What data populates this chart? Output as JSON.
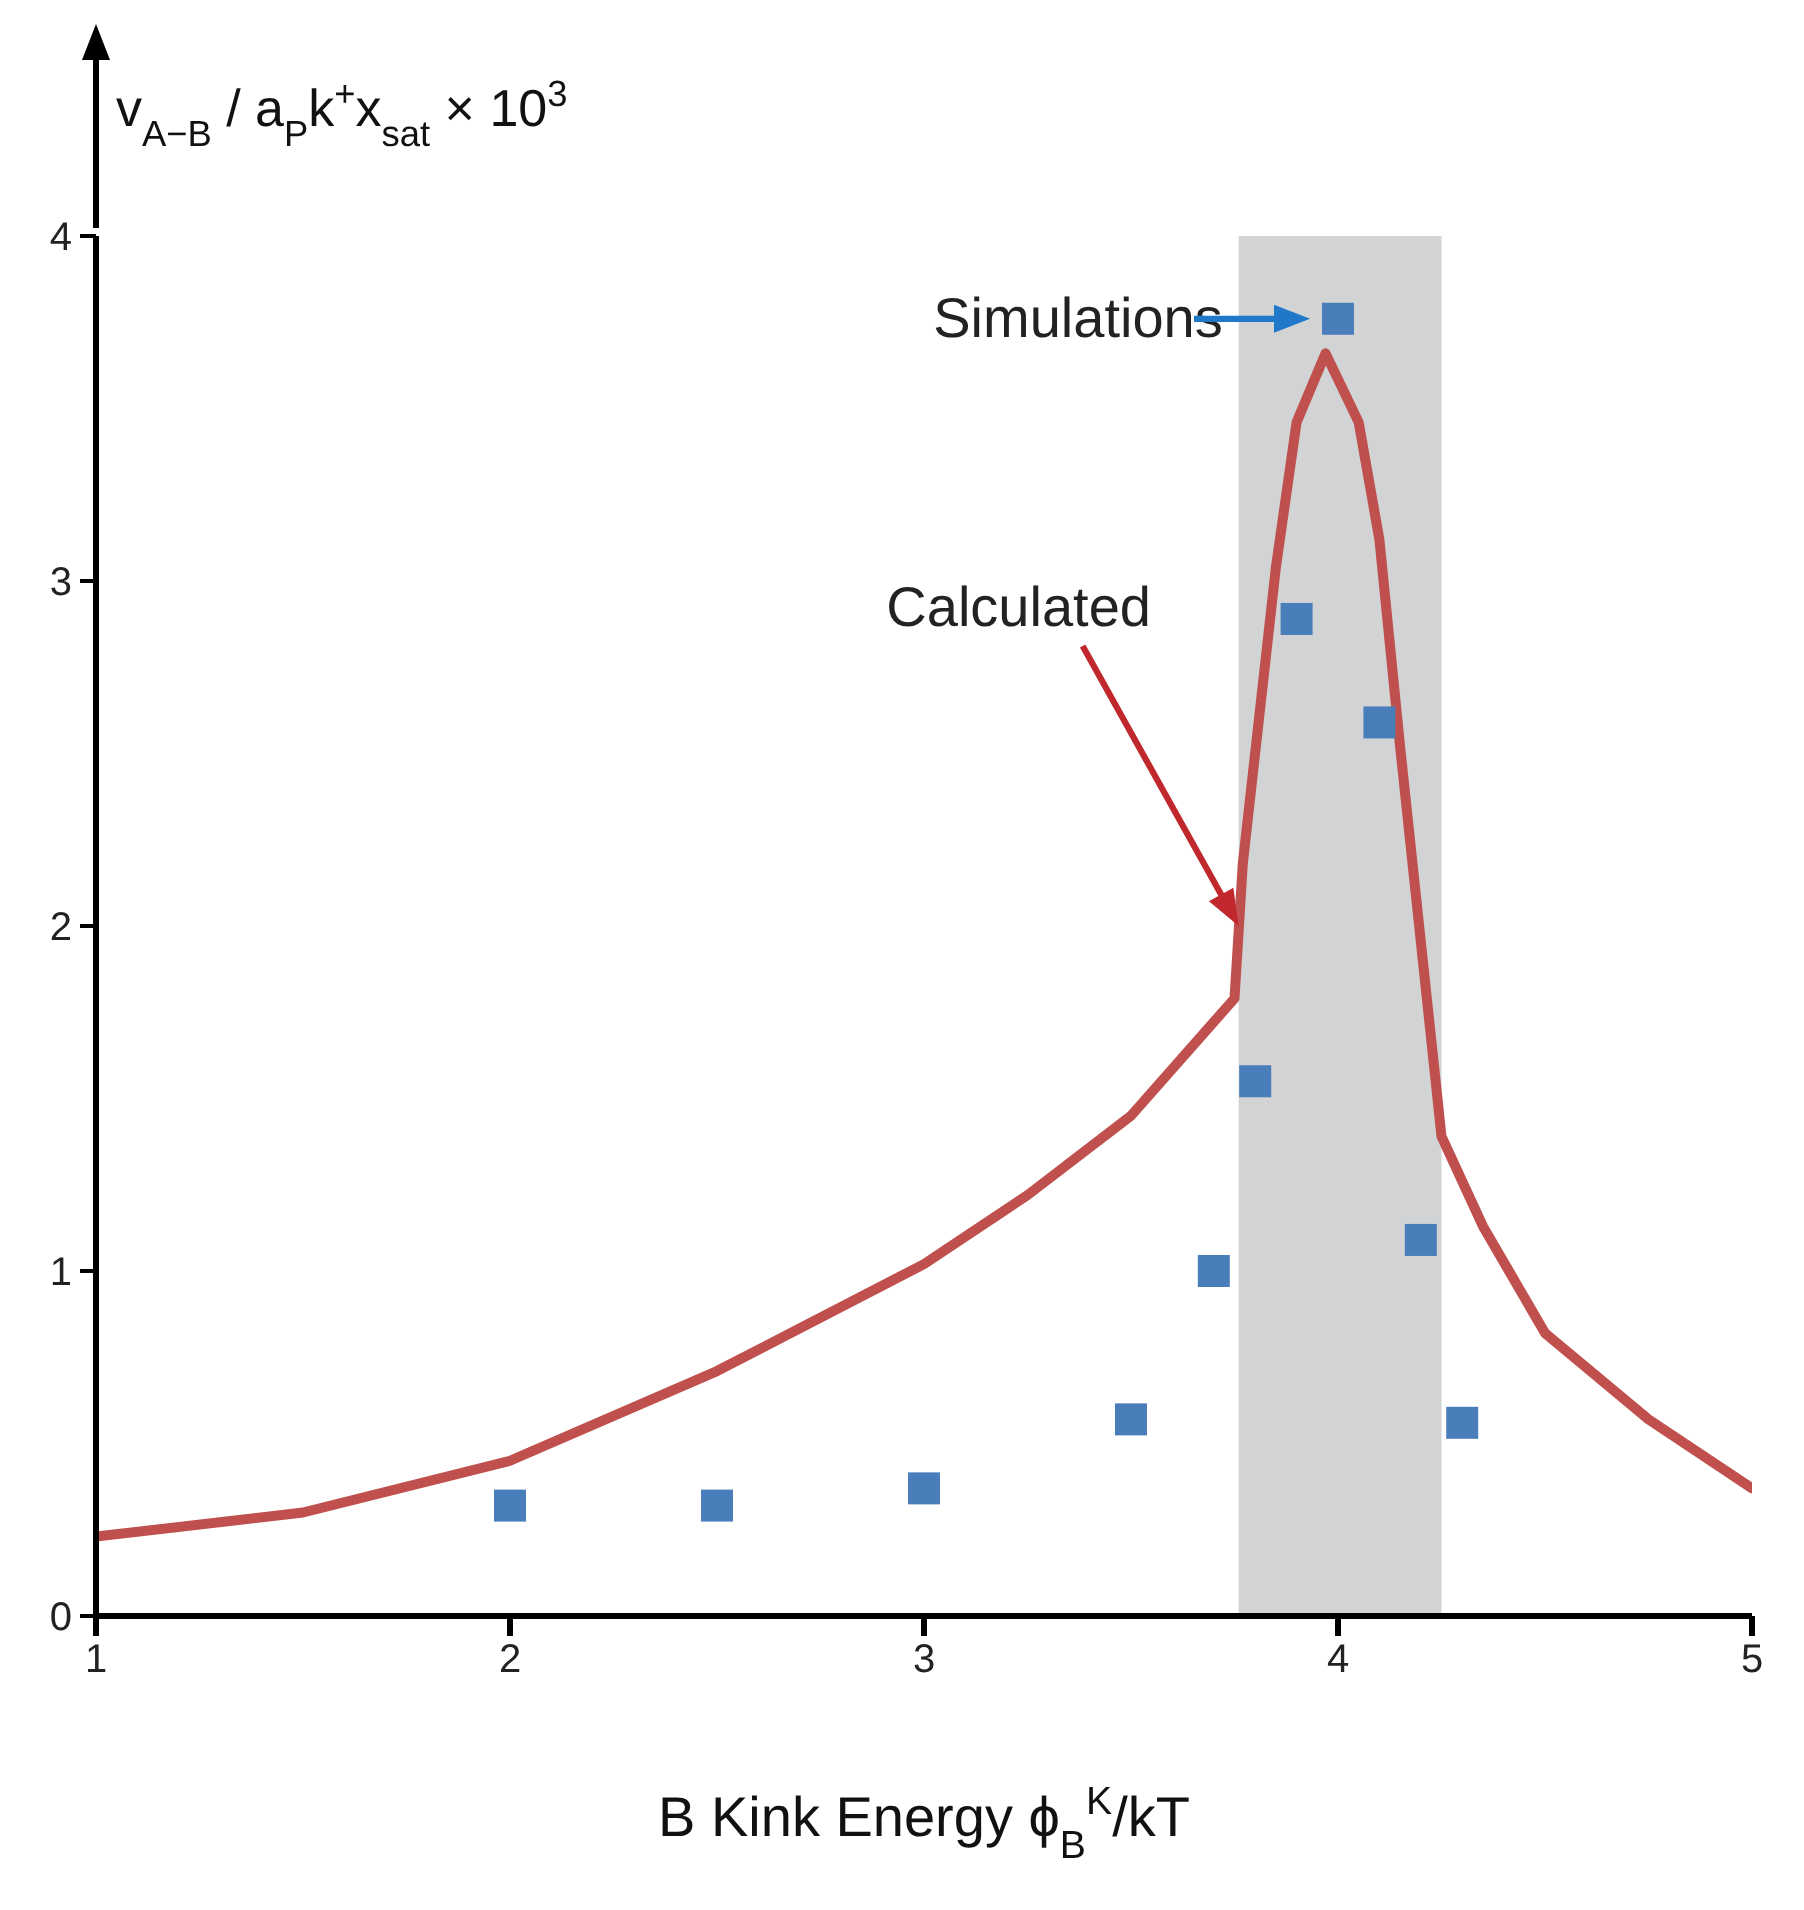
{
  "chart_data": {
    "type": "scatter",
    "xlabel": "B Kink Energy  ϕ$_{B}$$^{K}$/kT",
    "ylabel": "v$_{A−B}$ / a$_{P}$k$^{+}$x$_{sat}$ × 10$^{3}$",
    "xlim": [
      1,
      5
    ],
    "xticks": [
      1,
      2,
      3,
      4,
      5
    ],
    "ylim": [
      0,
      4
    ],
    "yticks": [
      0,
      1,
      2,
      3,
      4
    ],
    "series": [
      {
        "type": "line",
        "color": "#c0504d",
        "marker": "none",
        "line_style": "solid",
        "x": [
          1,
          1.5,
          2,
          2.5,
          3,
          3.25,
          3.5,
          3.75,
          3.77,
          3.85,
          3.9,
          3.97,
          4.05,
          4.1,
          4.15,
          4.25,
          4.35,
          4.5,
          4.75,
          5
        ],
        "values": [
          0.23,
          0.3,
          0.45,
          0.71,
          1.02,
          1.22,
          1.45,
          1.79,
          2.18,
          3.04,
          3.46,
          3.66,
          3.46,
          3.12,
          2.52,
          1.39,
          1.13,
          0.82,
          0.57,
          0.37
        ]
      },
      {
        "color": "#4a7ebb",
        "marker": "square",
        "x": [
          2,
          2.5,
          3,
          3.5,
          3.7,
          3.8,
          3.9,
          4.0,
          4.1,
          4.2,
          4.3
        ],
        "values": [
          0.32,
          0.32,
          0.37,
          0.57,
          1.0,
          1.55,
          2.89,
          3.76,
          2.59,
          1.09,
          0.56
        ]
      }
    ],
    "bands": [
      {
        "axis": "x",
        "from": 3.76,
        "to": 4.25,
        "color": "#d1d3d4"
      }
    ],
    "annotations": [
      {
        "text": "Simulations",
        "x": 4.0,
        "y": 3.76
      },
      "Calculated"
    ]
  }
}
